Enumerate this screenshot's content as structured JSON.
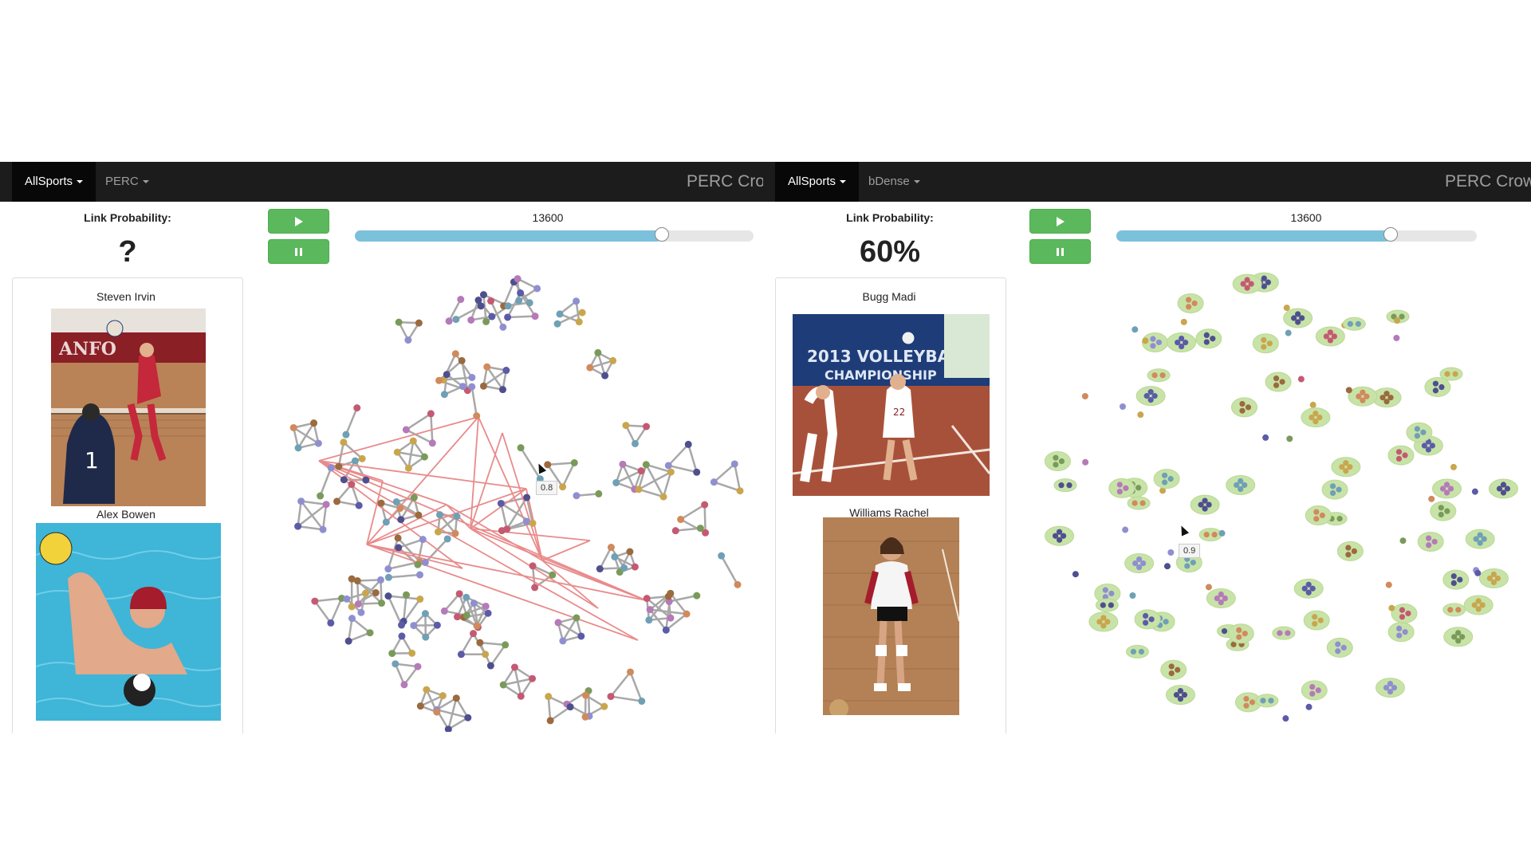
{
  "left": {
    "nav": {
      "dataset": "AllSports",
      "method": "PERC",
      "brand": "PERC Crow"
    },
    "link_probability": {
      "label": "Link Probability:",
      "value": "?"
    },
    "controls": {
      "play_icon": "play-icon",
      "pause_icon": "pause-icon"
    },
    "slider": {
      "value": "13600",
      "fraction": 0.77
    },
    "people": [
      {
        "name": "Steven Irvin"
      },
      {
        "name": "Alex Bowen"
      }
    ],
    "graph_tooltip": "0.8"
  },
  "right": {
    "nav": {
      "dataset": "AllSports",
      "method": "bDense",
      "brand": "PERC Crowd"
    },
    "link_probability": {
      "label": "Link Probability:",
      "value": "60%"
    },
    "controls": {
      "play_icon": "play-icon",
      "pause_icon": "pause-icon"
    },
    "slider": {
      "value": "13600",
      "fraction": 0.76
    },
    "people": [
      {
        "name": "Bugg Madi"
      },
      {
        "name": "Williams Rachel"
      }
    ],
    "graph_tooltip": "0.9"
  },
  "colors": {
    "navbar": "#1c1c1c",
    "button_green": "#5cb85c",
    "slider_fill": "#7cc1dc",
    "edge_gray": "#a8a8a8",
    "edge_red": "#e98b8b",
    "halo_green": "#c8e3a8"
  }
}
